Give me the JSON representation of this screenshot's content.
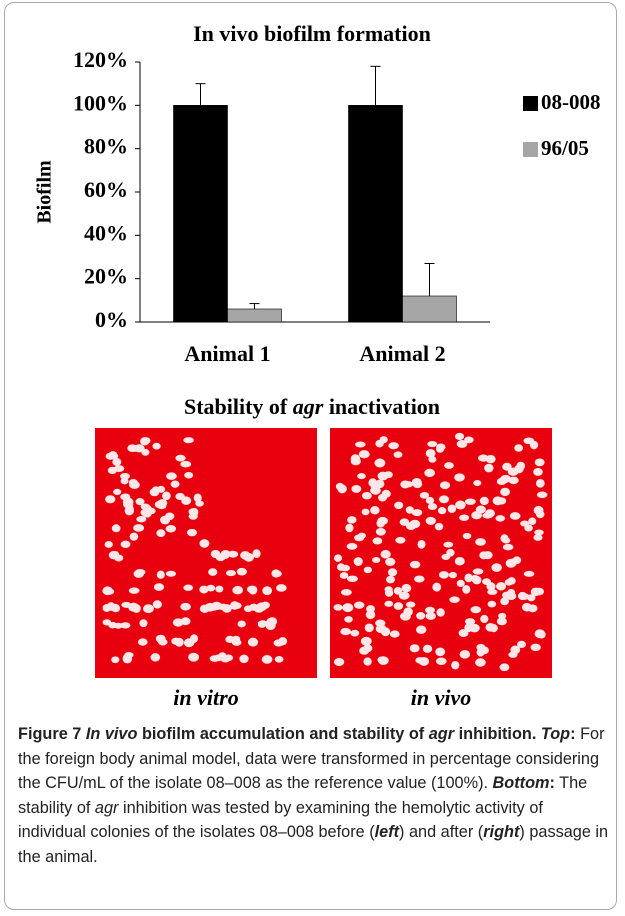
{
  "chart_data": {
    "type": "bar",
    "title": "In vivo biofilm formation",
    "y_label": "Biofilm",
    "categories": [
      "Animal 1",
      "Animal 2"
    ],
    "series": [
      {
        "name": "08-008",
        "color": "#000000",
        "values": [
          100,
          100
        ],
        "errors": [
          10,
          18
        ]
      },
      {
        "name": "96/05",
        "color": "#a6a6a6",
        "values": [
          6,
          12
        ],
        "errors": [
          2.5,
          15
        ]
      }
    ],
    "ylim": [
      0,
      120
    ],
    "yticks": [
      {
        "value": 0,
        "label": "0%"
      },
      {
        "value": 20,
        "label": "20%"
      },
      {
        "value": 40,
        "label": "40%"
      },
      {
        "value": 60,
        "label": "60%"
      },
      {
        "value": 80,
        "label": "80%"
      },
      {
        "value": 100,
        "label": "100%"
      },
      {
        "value": 120,
        "label": "120%"
      }
    ],
    "grid": false,
    "legend": "right"
  },
  "panel": {
    "title_runs": [
      {
        "text": "Stability of ",
        "italic": false
      },
      {
        "text": "agr",
        "italic": true
      },
      {
        "text": " inactivation",
        "italic": false
      }
    ],
    "images": [
      {
        "label": "in vitro"
      },
      {
        "label": "in vivo"
      }
    ]
  },
  "caption": {
    "runs": [
      {
        "text": "Figure 7 ",
        "bold": true,
        "italic": false
      },
      {
        "text": "In vivo",
        "bold": true,
        "italic": true
      },
      {
        "text": " biofilm accumulation and stability of ",
        "bold": true,
        "italic": false
      },
      {
        "text": "agr",
        "bold": true,
        "italic": true
      },
      {
        "text": " inhibition. ",
        "bold": true,
        "italic": false
      },
      {
        "text": "Top",
        "bold": true,
        "italic": true
      },
      {
        "text": ":",
        "bold": true,
        "italic": false
      },
      {
        "text": " For the foreign body animal model, data were transformed in percentage considering the CFU/mL of the isolate 08–008 as the reference value (100%). ",
        "bold": false,
        "italic": false
      },
      {
        "text": "Bottom",
        "bold": true,
        "italic": true
      },
      {
        "text": ":",
        "bold": true,
        "italic": false
      },
      {
        "text": " The stability of ",
        "bold": false,
        "italic": false
      },
      {
        "text": "agr",
        "bold": false,
        "italic": true
      },
      {
        "text": " inhibition was tested by examining the hemolytic activity of individual colonies of the isolates 08–008 before (",
        "bold": false,
        "italic": false
      },
      {
        "text": "left",
        "bold": true,
        "italic": true
      },
      {
        "text": ") and after (",
        "bold": false,
        "italic": false
      },
      {
        "text": "right",
        "bold": true,
        "italic": true
      },
      {
        "text": ") passage in the animal.",
        "bold": false,
        "italic": false
      }
    ]
  }
}
